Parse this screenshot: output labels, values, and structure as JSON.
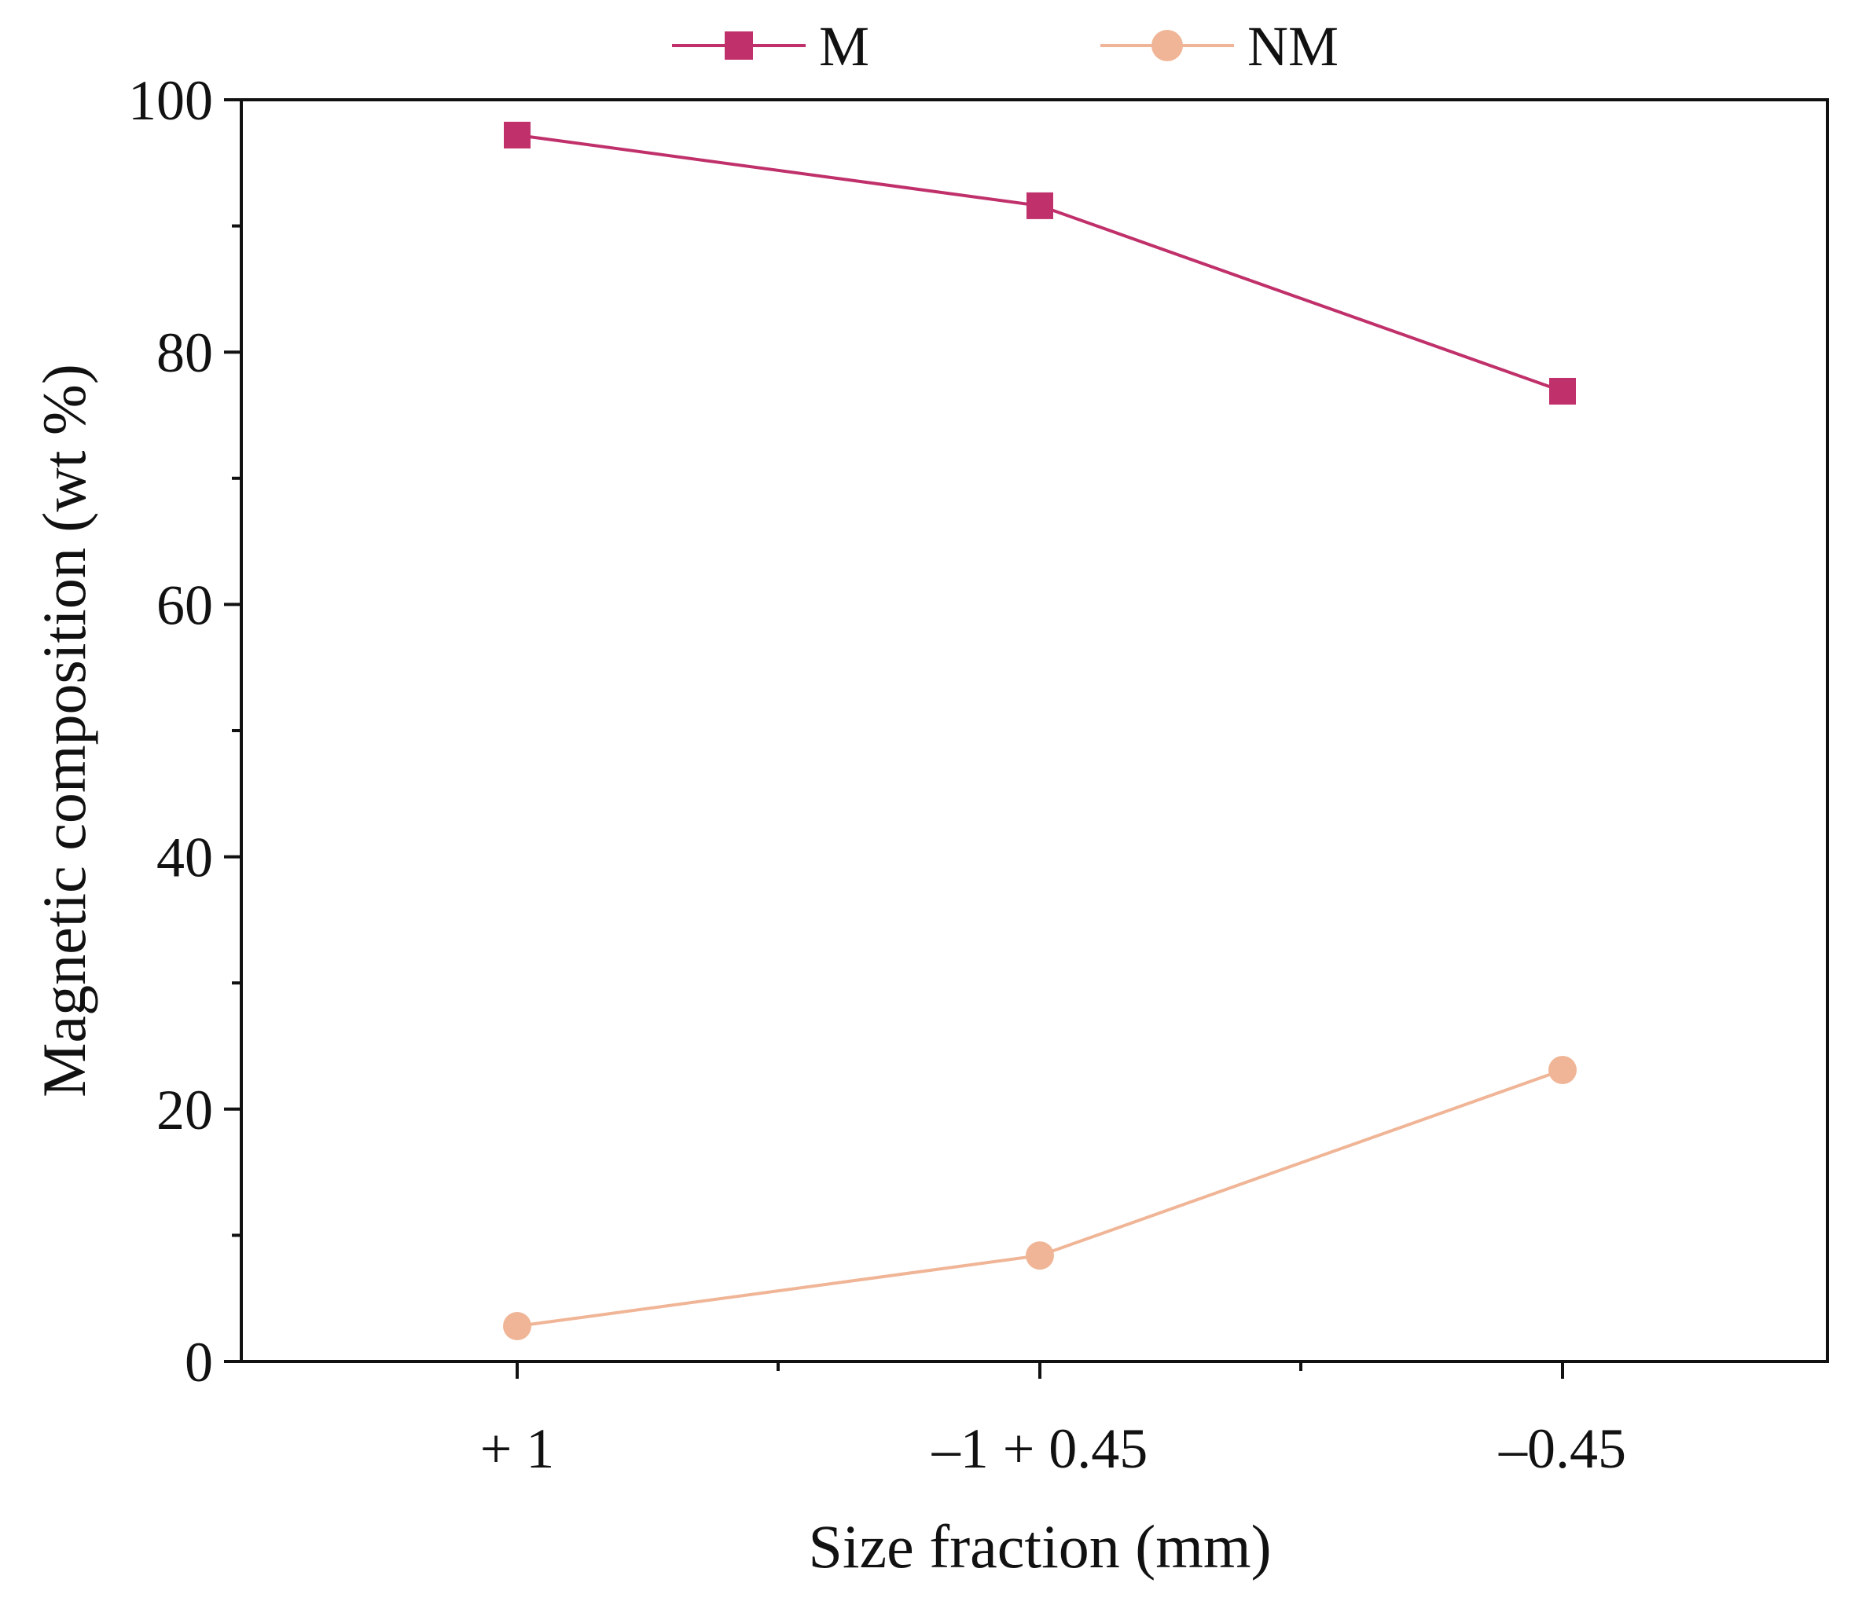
{
  "chart_data": {
    "type": "line",
    "title": "",
    "xlabel": "Size fraction (mm)",
    "ylabel": "Magnetic composition (wt %)",
    "categories": [
      "+ 1",
      "–1 + 0.45",
      "–0.45"
    ],
    "ylim": [
      0,
      100
    ],
    "yticks": [
      0,
      20,
      40,
      60,
      80,
      100
    ],
    "y_minor_step": 10,
    "grid": false,
    "legend_position": "top-center",
    "series": [
      {
        "name": "M",
        "marker": "square",
        "color": "#c0306a",
        "values": [
          97.2,
          91.6,
          76.9
        ]
      },
      {
        "name": "NM",
        "marker": "circle",
        "color": "#f0b596",
        "values": [
          2.8,
          8.4,
          23.1
        ]
      }
    ]
  }
}
